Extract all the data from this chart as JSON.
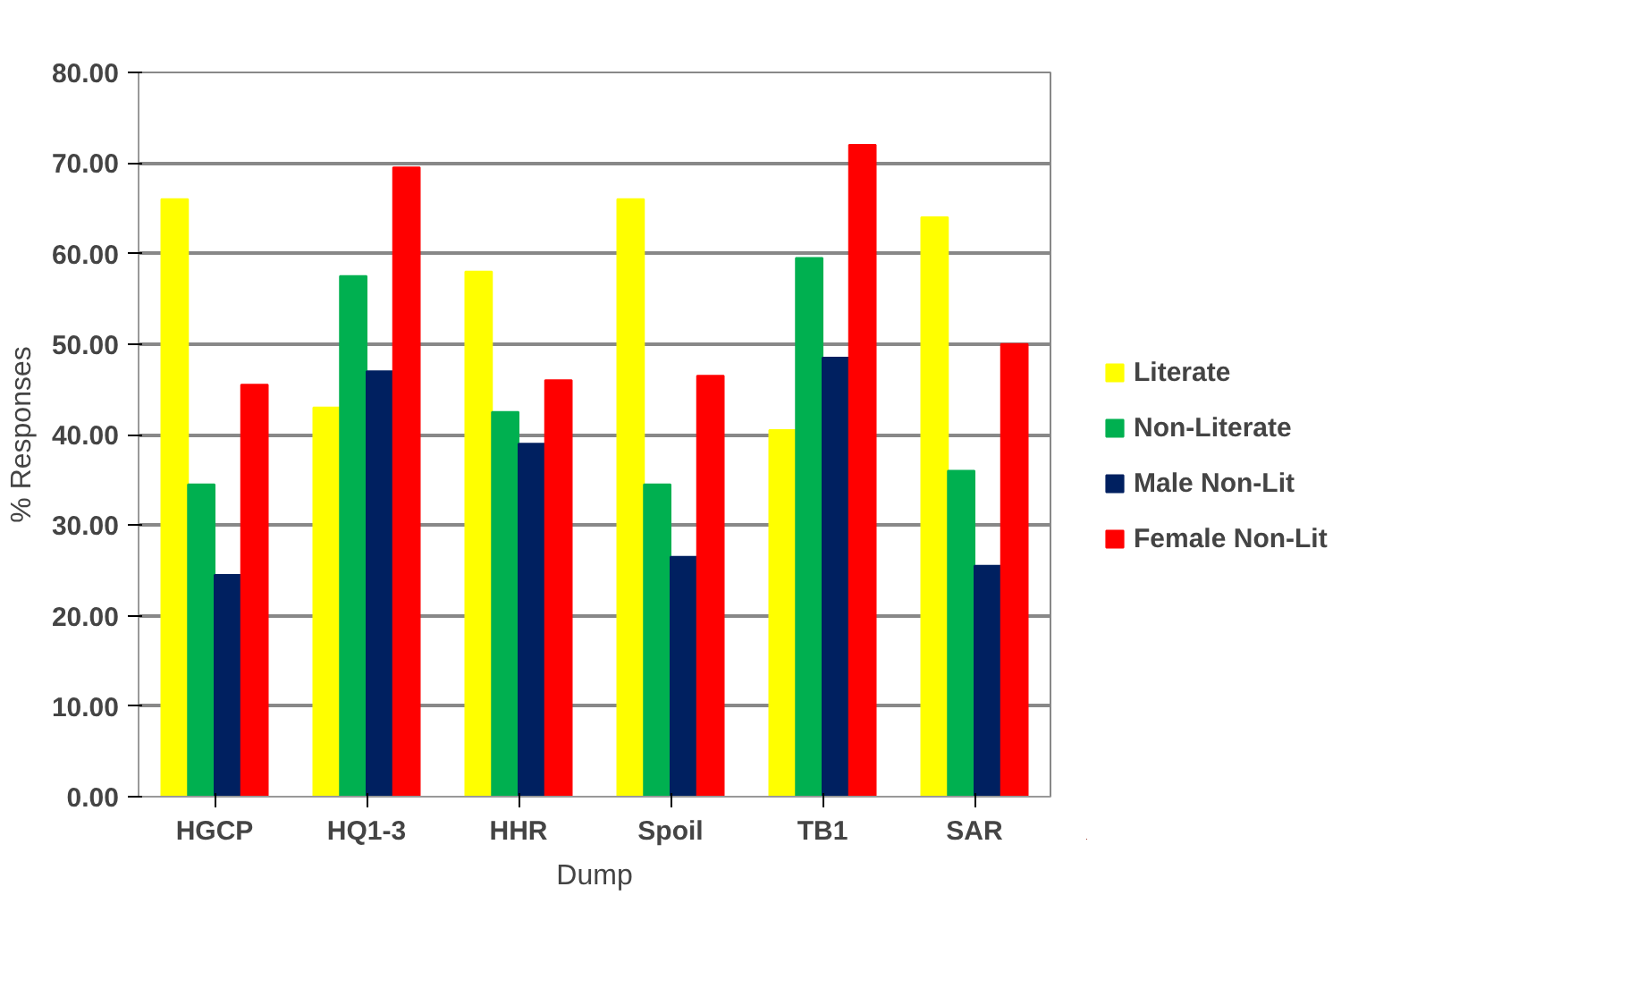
{
  "chart_data": {
    "type": "bar",
    "xlabel": "Dump",
    "ylabel": "% Responses",
    "categories": [
      "HGCP",
      "HQ1-3",
      "HHR",
      "Spoil",
      "TB1",
      "SAR"
    ],
    "series": [
      {
        "name": "Literate",
        "color": "#ffff00",
        "values": [
          66,
          43,
          58,
          66,
          40.5,
          64
        ]
      },
      {
        "name": "Non-Literate",
        "color": "#00b050",
        "values": [
          34.5,
          57.5,
          42.5,
          34.5,
          59.5,
          36
        ]
      },
      {
        "name": "Male Non-Lit",
        "color": "#002060",
        "values": [
          24.5,
          47,
          39,
          26.5,
          48.5,
          25.5
        ]
      },
      {
        "name": "Female Non-Lit",
        "color": "#ff0000",
        "values": [
          45.5,
          69.5,
          46,
          46.5,
          72,
          50
        ]
      }
    ],
    "ylim": [
      0,
      80
    ],
    "yticks": [
      {
        "value": 0,
        "label": "0.00"
      },
      {
        "value": 10,
        "label": "10.00"
      },
      {
        "value": 20,
        "label": "20.00"
      },
      {
        "value": 30,
        "label": "30.00"
      },
      {
        "value": 40,
        "label": "40.00"
      },
      {
        "value": 50,
        "label": "50.00"
      },
      {
        "value": 60,
        "label": "60.00"
      },
      {
        "value": 70,
        "label": "70.00"
      },
      {
        "value": 80,
        "label": "80.00"
      }
    ],
    "grid": "y",
    "legend": "right"
  }
}
